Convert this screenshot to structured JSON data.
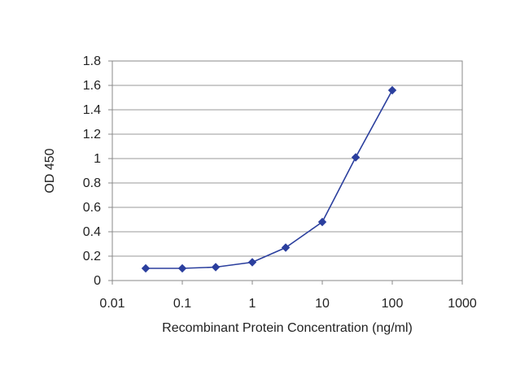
{
  "chart_data": {
    "type": "line",
    "title": "",
    "xlabel": "Recombinant Protein Concentration (ng/ml)",
    "ylabel": "OD 450",
    "x_scale": "log",
    "xlim": [
      0.01,
      1000
    ],
    "ylim": [
      0,
      1.8
    ],
    "x_ticks": [
      "0.01",
      "0.1",
      "1",
      "10",
      "100",
      "1000"
    ],
    "y_ticks": [
      "0",
      "0.2",
      "0.4",
      "0.6",
      "0.8",
      "1",
      "1.2",
      "1.4",
      "1.6",
      "1.8"
    ],
    "grid": "horizontal",
    "legend": "none",
    "series": [
      {
        "color": "#2b3f9e",
        "marker": "diamond",
        "x": [
          0.03,
          0.1,
          0.3,
          1,
          3,
          10,
          30,
          100
        ],
        "y": [
          0.1,
          0.1,
          0.11,
          0.15,
          0.27,
          0.48,
          1.01,
          1.56
        ]
      }
    ]
  }
}
